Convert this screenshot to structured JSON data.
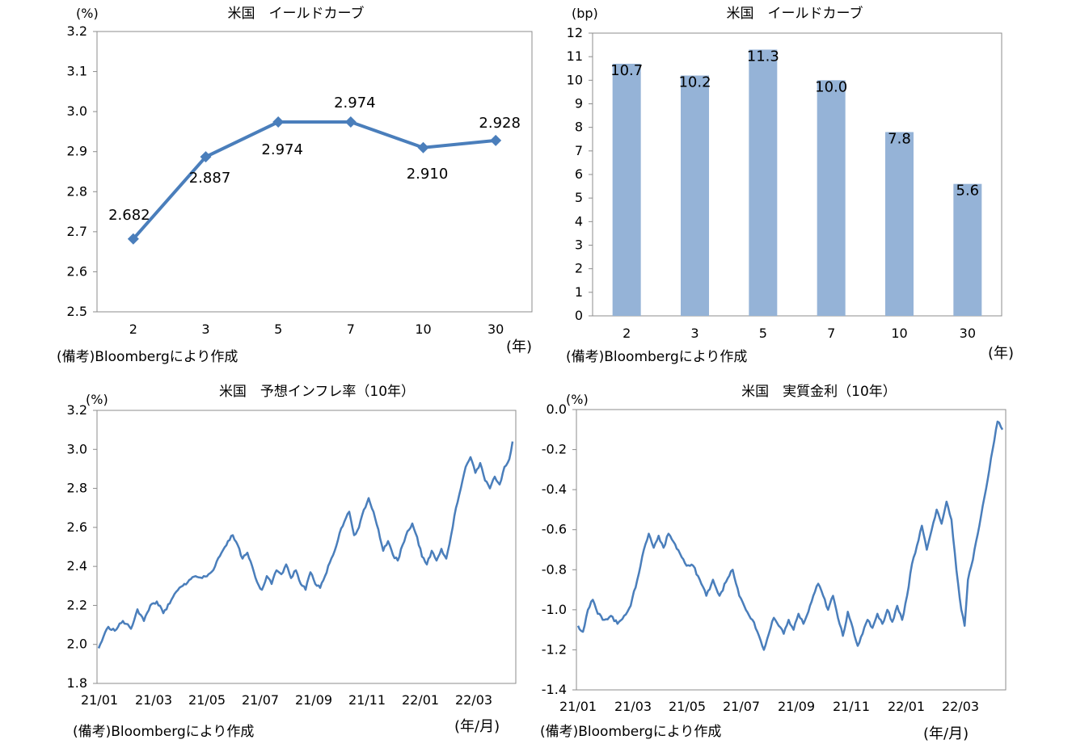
{
  "chart_data": [
    {
      "id": "c1",
      "type": "line",
      "title": "米国　イールドカーブ",
      "y_unit": "(%)",
      "x_unit": "(年)",
      "note": "(備考)Bloombergにより作成",
      "categories": [
        "2",
        "3",
        "5",
        "7",
        "10",
        "30"
      ],
      "values": [
        2.682,
        2.887,
        2.974,
        2.974,
        2.91,
        2.928
      ],
      "data_labels": [
        "2.682",
        "2.887",
        "2.974",
        "2.974",
        "2.910",
        "2.928"
      ],
      "ylim": [
        2.5,
        3.2
      ],
      "yticks": [
        "2.5",
        "2.6",
        "2.7",
        "2.8",
        "2.9",
        "3.0",
        "3.1",
        "3.2"
      ],
      "color": "#4A7EBB"
    },
    {
      "id": "c2",
      "type": "bar",
      "title": "米国　イールドカーブ",
      "y_unit": "(bp)",
      "x_unit": "(年)",
      "note": "(備考)Bloombergにより作成",
      "categories": [
        "2",
        "3",
        "5",
        "7",
        "10",
        "30"
      ],
      "values": [
        10.7,
        10.2,
        11.3,
        10.0,
        7.8,
        5.6
      ],
      "data_labels": [
        "10.7",
        "10.2",
        "11.3",
        "10.0",
        "7.8",
        "5.6"
      ],
      "ylim": [
        0,
        12
      ],
      "yticks": [
        "0",
        "1",
        "2",
        "3",
        "4",
        "5",
        "6",
        "7",
        "8",
        "9",
        "10",
        "11",
        "12"
      ],
      "color": "#95B3D7"
    },
    {
      "id": "c3",
      "type": "line",
      "title": "米国　予想インフレ率（10年）",
      "y_unit": "(%)",
      "x_unit": "(年/月)",
      "note": "(備考)Bloombergにより作成",
      "xticks": [
        "21/01",
        "21/03",
        "21/05",
        "21/07",
        "21/09",
        "21/11",
        "22/01",
        "22/03"
      ],
      "ylim": [
        1.8,
        3.2
      ],
      "yticks": [
        "1.8",
        "2.0",
        "2.2",
        "2.4",
        "2.6",
        "2.8",
        "3.0",
        "3.2"
      ],
      "anchors": [
        [
          0,
          1.98
        ],
        [
          3,
          2.04
        ],
        [
          6,
          2.09
        ],
        [
          10,
          2.07
        ],
        [
          15,
          2.12
        ],
        [
          20,
          2.08
        ],
        [
          24,
          2.18
        ],
        [
          28,
          2.12
        ],
        [
          32,
          2.2
        ],
        [
          36,
          2.22
        ],
        [
          40,
          2.16
        ],
        [
          44,
          2.21
        ],
        [
          48,
          2.27
        ],
        [
          52,
          2.3
        ],
        [
          56,
          2.33
        ],
        [
          60,
          2.35
        ],
        [
          64,
          2.34
        ],
        [
          68,
          2.36
        ],
        [
          72,
          2.4
        ],
        [
          76,
          2.47
        ],
        [
          80,
          2.53
        ],
        [
          83,
          2.56
        ],
        [
          86,
          2.51
        ],
        [
          89,
          2.44
        ],
        [
          92,
          2.47
        ],
        [
          95,
          2.4
        ],
        [
          98,
          2.32
        ],
        [
          101,
          2.28
        ],
        [
          104,
          2.35
        ],
        [
          107,
          2.31
        ],
        [
          110,
          2.38
        ],
        [
          113,
          2.36
        ],
        [
          116,
          2.41
        ],
        [
          119,
          2.34
        ],
        [
          122,
          2.38
        ],
        [
          125,
          2.31
        ],
        [
          128,
          2.28
        ],
        [
          131,
          2.37
        ],
        [
          134,
          2.31
        ],
        [
          137,
          2.29
        ],
        [
          140,
          2.35
        ],
        [
          143,
          2.42
        ],
        [
          146,
          2.48
        ],
        [
          149,
          2.57
        ],
        [
          152,
          2.63
        ],
        [
          155,
          2.68
        ],
        [
          158,
          2.56
        ],
        [
          161,
          2.6
        ],
        [
          164,
          2.69
        ],
        [
          167,
          2.75
        ],
        [
          170,
          2.68
        ],
        [
          173,
          2.59
        ],
        [
          176,
          2.48
        ],
        [
          179,
          2.53
        ],
        [
          182,
          2.46
        ],
        [
          185,
          2.43
        ],
        [
          188,
          2.51
        ],
        [
          191,
          2.58
        ],
        [
          194,
          2.62
        ],
        [
          197,
          2.55
        ],
        [
          200,
          2.45
        ],
        [
          203,
          2.41
        ],
        [
          206,
          2.48
        ],
        [
          209,
          2.43
        ],
        [
          212,
          2.49
        ],
        [
          215,
          2.44
        ],
        [
          218,
          2.56
        ],
        [
          221,
          2.7
        ],
        [
          224,
          2.8
        ],
        [
          227,
          2.91
        ],
        [
          230,
          2.96
        ],
        [
          233,
          2.88
        ],
        [
          236,
          2.93
        ],
        [
          239,
          2.84
        ],
        [
          242,
          2.8
        ],
        [
          245,
          2.86
        ],
        [
          248,
          2.82
        ],
        [
          251,
          2.91
        ],
        [
          254,
          2.95
        ],
        [
          256,
          3.04
        ]
      ],
      "color": "#4A7EBB"
    },
    {
      "id": "c4",
      "type": "line",
      "title": "米国　実質金利（10年）",
      "y_unit": "(%)",
      "x_unit": "(年/月)",
      "note": "(備考)Bloombergにより作成",
      "xticks": [
        "21/01",
        "21/03",
        "21/05",
        "21/07",
        "21/09",
        "21/11",
        "22/01",
        "22/03"
      ],
      "ylim": [
        -1.4,
        0.0
      ],
      "yticks": [
        "-1.4",
        "-1.2",
        "-1.0",
        "-0.8",
        "-0.6",
        "-0.4",
        "-0.2",
        "0.0"
      ],
      "anchors": [
        [
          0,
          -1.08
        ],
        [
          3,
          -1.11
        ],
        [
          6,
          -1.0
        ],
        [
          9,
          -0.95
        ],
        [
          12,
          -1.02
        ],
        [
          16,
          -1.05
        ],
        [
          20,
          -1.03
        ],
        [
          24,
          -1.07
        ],
        [
          28,
          -1.03
        ],
        [
          32,
          -0.98
        ],
        [
          36,
          -0.85
        ],
        [
          40,
          -0.7
        ],
        [
          43,
          -0.62
        ],
        [
          46,
          -0.69
        ],
        [
          49,
          -0.63
        ],
        [
          52,
          -0.69
        ],
        [
          55,
          -0.62
        ],
        [
          58,
          -0.66
        ],
        [
          62,
          -0.72
        ],
        [
          66,
          -0.78
        ],
        [
          70,
          -0.78
        ],
        [
          74,
          -0.85
        ],
        [
          78,
          -0.93
        ],
        [
          82,
          -0.85
        ],
        [
          86,
          -0.93
        ],
        [
          90,
          -0.86
        ],
        [
          94,
          -0.8
        ],
        [
          98,
          -0.93
        ],
        [
          102,
          -1.0
        ],
        [
          106,
          -1.05
        ],
        [
          110,
          -1.13
        ],
        [
          113,
          -1.2
        ],
        [
          116,
          -1.12
        ],
        [
          119,
          -1.04
        ],
        [
          122,
          -1.08
        ],
        [
          125,
          -1.12
        ],
        [
          128,
          -1.05
        ],
        [
          131,
          -1.1
        ],
        [
          134,
          -1.02
        ],
        [
          137,
          -1.07
        ],
        [
          140,
          -1.01
        ],
        [
          143,
          -0.93
        ],
        [
          146,
          -0.87
        ],
        [
          149,
          -0.93
        ],
        [
          152,
          -1.0
        ],
        [
          155,
          -0.93
        ],
        [
          158,
          -1.04
        ],
        [
          161,
          -1.13
        ],
        [
          164,
          -1.01
        ],
        [
          167,
          -1.09
        ],
        [
          170,
          -1.18
        ],
        [
          173,
          -1.12
        ],
        [
          176,
          -1.05
        ],
        [
          179,
          -1.09
        ],
        [
          182,
          -1.02
        ],
        [
          185,
          -1.07
        ],
        [
          188,
          -1.0
        ],
        [
          191,
          -1.06
        ],
        [
          194,
          -0.98
        ],
        [
          197,
          -1.05
        ],
        [
          200,
          -0.93
        ],
        [
          203,
          -0.77
        ],
        [
          206,
          -0.68
        ],
        [
          209,
          -0.58
        ],
        [
          212,
          -0.7
        ],
        [
          215,
          -0.6
        ],
        [
          218,
          -0.5
        ],
        [
          221,
          -0.57
        ],
        [
          224,
          -0.46
        ],
        [
          227,
          -0.55
        ],
        [
          230,
          -0.8
        ],
        [
          233,
          -1.0
        ],
        [
          235,
          -1.08
        ],
        [
          237,
          -0.85
        ],
        [
          240,
          -0.75
        ],
        [
          243,
          -0.62
        ],
        [
          246,
          -0.48
        ],
        [
          249,
          -0.35
        ],
        [
          252,
          -0.2
        ],
        [
          255,
          -0.06
        ],
        [
          258,
          -0.1
        ]
      ],
      "color": "#4A7EBB"
    }
  ]
}
